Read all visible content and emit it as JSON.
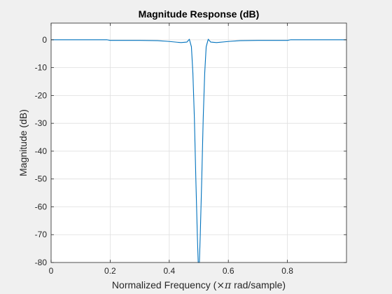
{
  "chart_data": {
    "type": "line",
    "title": "Magnitude Response (dB)",
    "xlabel_prefix": "Normalized Frequency  (",
    "xlabel_symbol": "×π",
    "xlabel_suffix": " rad/sample)",
    "ylabel": "Magnitude (dB)",
    "xlim": [
      0,
      1
    ],
    "ylim": [
      -80,
      6
    ],
    "x_ticks": [
      0,
      0.2,
      0.4,
      0.6,
      0.8
    ],
    "x_tick_labels": [
      "0",
      "0.2",
      "0.4",
      "0.6",
      "0.8"
    ],
    "y_ticks": [
      0,
      -10,
      -20,
      -30,
      -40,
      -50,
      -60,
      -70,
      -80
    ],
    "y_tick_labels": [
      "0",
      "-10",
      "-20",
      "-30",
      "-40",
      "-50",
      "-60",
      "-70",
      "-80"
    ],
    "grid": true,
    "colors": {
      "line": "#0072bd",
      "grid": "#dfdfdf",
      "axes": "#262626",
      "plot_background": "#ffffff",
      "figure_background": "#f0f0f0"
    },
    "series": [
      {
        "x": [
          0,
          0.1,
          0.19,
          0.2,
          0.3,
          0.36,
          0.4,
          0.44,
          0.46,
          0.468,
          0.475,
          0.48,
          0.485,
          0.49,
          0.495,
          0.498,
          0.5,
          0.502,
          0.505,
          0.51,
          0.515,
          0.52,
          0.525,
          0.532,
          0.54,
          0.56,
          0.6,
          0.64,
          0.7,
          0.8,
          0.81,
          0.9,
          1
        ],
        "y": [
          0,
          0,
          0,
          -0.2,
          -0.2,
          -0.3,
          -0.6,
          -1,
          -0.8,
          0.2,
          -2.5,
          -12,
          -28,
          -50,
          -70,
          -80,
          -80,
          -80,
          -70,
          -50,
          -28,
          -12,
          -2.5,
          0.2,
          -0.8,
          -1,
          -0.6,
          -0.3,
          -0.2,
          -0.2,
          0,
          0,
          0
        ]
      }
    ]
  }
}
